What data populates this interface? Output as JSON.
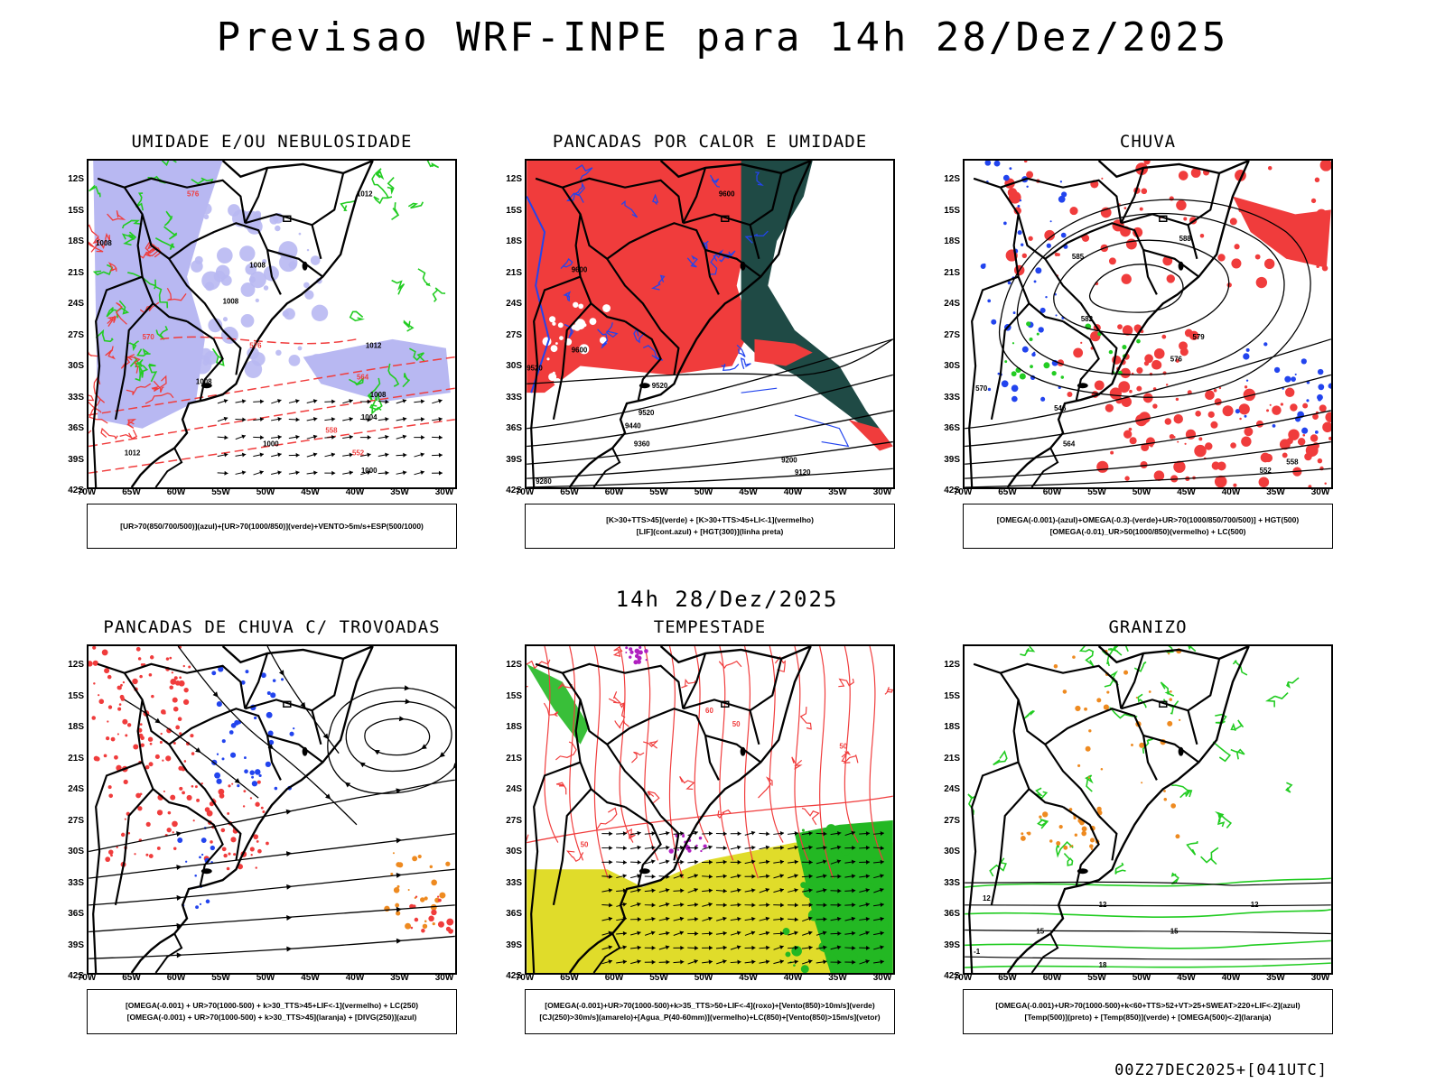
{
  "title": "Previsao WRF-INPE  para 14h 28/Dez/2025",
  "mid_title": "14h 28/Dez/2025",
  "footer": "00Z27DEC2025+[041UTC]",
  "lat_labels": [
    "12S",
    "15S",
    "18S",
    "21S",
    "24S",
    "27S",
    "30S",
    "33S",
    "36S",
    "39S",
    "42S"
  ],
  "lon_labels": [
    "70W",
    "65W",
    "60W",
    "55W",
    "50W",
    "45W",
    "40W",
    "35W",
    "30W"
  ],
  "panels": [
    {
      "id": "umidade",
      "title": "UMIDADE E/OU NEBULOSIDADE",
      "legend": [
        "[UR>70(850/700/500)](azul)+[UR>70(1000/850)](verde)+VENTO>5m/s+ESP(500/1000)"
      ],
      "contour_labels": [
        "1008",
        "1012",
        "1008",
        "1008",
        "1008",
        "1012",
        "1008",
        "1004",
        "1000",
        "1000",
        "1012",
        "576",
        "570",
        "564",
        "558",
        "552",
        "576"
      ]
    },
    {
      "id": "pancadas-calor",
      "title": "PANCADAS POR CALOR E UMIDADE",
      "legend": [
        "[K>30+TTS>45](verde) + [K>30+TTS>45+LI<-1](vermelho)",
        "[LIF](cont.azul) + [HGT(300)](linha preta)"
      ],
      "contour_labels": [
        "9600",
        "9600",
        "9600",
        "9520",
        "9520",
        "9440",
        "9360",
        "9200",
        "9120",
        "9280",
        "9520"
      ]
    },
    {
      "id": "chuva",
      "title": "CHUVA",
      "legend": [
        "[OMEGA(-0.001)-(azul)+OMEGA(-0.3)-(verde)+UR>70(1000/850/700/500)] + HGT(500)",
        "[OMEGA(-0.01)_UR>50(1000/850)(vermelho) + LC(500)"
      ],
      "contour_labels": [
        "588",
        "585",
        "582",
        "579",
        "576",
        "570",
        "564",
        "558",
        "552",
        "546"
      ]
    },
    {
      "id": "trovoadas",
      "title": "PANCADAS DE CHUVA C/ TROVOADAS",
      "legend": [
        "[OMEGA(-0.001) + UR>70(1000-500) + k>30_TTS>45+LIF<-1](vermelho) + LC(250)",
        "[OMEGA(-0.001) + UR>70(1000-500) + k>30_TTS>45](laranja) + [DIVG(250)](azul)"
      ],
      "contour_labels": []
    },
    {
      "id": "tempestade",
      "title": "TEMPESTADE",
      "legend": [
        "[OMEGA(-0.001)+UR>70(1000-500)+k>35_TTS>50+LIF<-4](roxo)+[Vento(850)>10m/s](verde)",
        "[CJ(250)>30m/s](amarelo)+[Agua_P(40-60mm)](vermelho)+LC(850)+[Vento(850)>15m/s](vetor)"
      ],
      "contour_labels": [
        "50",
        "50",
        "60",
        "50"
      ]
    },
    {
      "id": "granizo",
      "title": "GRANIZO",
      "legend": [
        "[OMEGA(-0.001)+UR>70(1000-500)+k<60+TTS>52+VT>25+SWEAT>220+LIF<-2](azul)",
        "[Temp(500)](preto) + [Temp(850)](verde) + [OMEGA(500)<-2](laranja)"
      ],
      "contour_labels": [
        "12",
        "12",
        "12",
        "15",
        "15",
        "18",
        "-1"
      ]
    }
  ],
  "colors": {
    "blue_shade": "#b8b8f2",
    "green": "#22cc22",
    "red": "#f03c3c",
    "dark_teal": "#1f4a45",
    "yellow": "#e0dc2a",
    "orange": "#ee8a20",
    "purple": "#b020c0",
    "blue": "#2244ee"
  }
}
